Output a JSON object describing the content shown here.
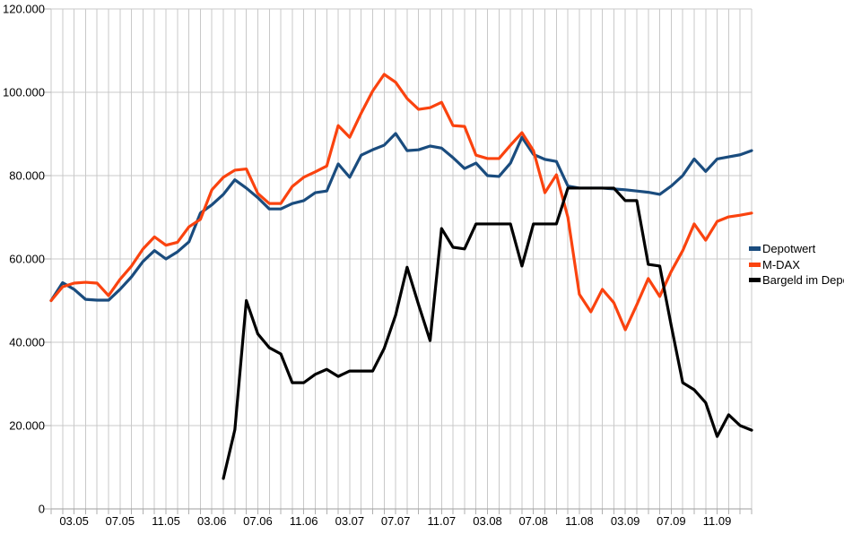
{
  "chart_data": {
    "type": "line",
    "title": "",
    "xlabel": "",
    "ylabel": "",
    "ylim": [
      0,
      120000
    ],
    "grid": "vertical line per month and horizontal line per 20.000, light gray, white background",
    "legend_position": "right, no border",
    "y_tick_labels": [
      "0",
      "20.000",
      "40.000",
      "60.000",
      "80.000",
      "100.000",
      "120.000"
    ],
    "y_tick_values": [
      0,
      20000,
      40000,
      60000,
      80000,
      100000,
      120000
    ],
    "x_tick_labels": [
      "03.05",
      "07.05",
      "11.05",
      "03.06",
      "07.06",
      "11.06",
      "03.07",
      "07.07",
      "11.07",
      "03.08",
      "07.08",
      "11.08",
      "03.09",
      "07.09",
      "11.09"
    ],
    "x_tick_month_indices": [
      2,
      6,
      10,
      14,
      18,
      22,
      26,
      30,
      34,
      38,
      42,
      46,
      50,
      54,
      58
    ],
    "x": [
      "01.05",
      "02.05",
      "03.05",
      "04.05",
      "05.05",
      "06.05",
      "07.05",
      "08.05",
      "09.05",
      "10.05",
      "11.05",
      "12.05",
      "01.06",
      "02.06",
      "03.06",
      "04.06",
      "05.06",
      "06.06",
      "07.06",
      "08.06",
      "09.06",
      "10.06",
      "11.06",
      "12.06",
      "01.07",
      "02.07",
      "03.07",
      "04.07",
      "05.07",
      "06.07",
      "07.07",
      "08.07",
      "09.07",
      "10.07",
      "11.07",
      "12.07",
      "01.08",
      "02.08",
      "03.08",
      "04.08",
      "05.08",
      "06.08",
      "07.08",
      "08.08",
      "09.08",
      "10.08",
      "11.08",
      "12.08",
      "01.09",
      "02.09",
      "03.09",
      "04.09",
      "05.09",
      "06.09",
      "07.09",
      "08.09",
      "09.09",
      "10.09",
      "11.09",
      "12.09",
      "01.10",
      "02.10"
    ],
    "series": [
      {
        "name": "Depotwert",
        "color": "#1A4C7E",
        "values": [
          50000,
          54300,
          52700,
          50300,
          50100,
          50100,
          52700,
          55700,
          59400,
          62000,
          60000,
          61700,
          64100,
          71000,
          73000,
          75500,
          79000,
          77000,
          74700,
          72000,
          72000,
          73300,
          74000,
          75900,
          76300,
          82800,
          79600,
          84900,
          86200,
          87300,
          90100,
          86000,
          86200,
          87100,
          86600,
          84300,
          81700,
          83000,
          80000,
          79800,
          83000,
          89200,
          85100,
          83900,
          83400,
          77500,
          77000,
          77000,
          77000,
          76800,
          76600,
          76300,
          76000,
          75500,
          77500,
          80000,
          84000,
          81000,
          84000,
          84500,
          85000,
          86000
        ]
      },
      {
        "name": "M-DAX",
        "color": "#FA430F",
        "values": [
          50000,
          53300,
          54200,
          54400,
          54200,
          51200,
          55100,
          58300,
          62400,
          65300,
          63300,
          64000,
          67700,
          69500,
          76600,
          79600,
          81300,
          81600,
          75700,
          73300,
          73300,
          77400,
          79600,
          80900,
          82300,
          92000,
          89200,
          95000,
          100300,
          104300,
          102400,
          98500,
          95900,
          96300,
          97600,
          92000,
          91800,
          84900,
          84100,
          84100,
          87300,
          90300,
          86000,
          75900,
          80200,
          70000,
          51500,
          47300,
          52700,
          49500,
          43000,
          49000,
          55300,
          51000,
          57000,
          62000,
          68400,
          64500,
          69000,
          70100,
          70500,
          71000
        ]
      },
      {
        "name": "Bargeld im Depot",
        "color": "#000000",
        "values": [
          null,
          null,
          null,
          null,
          null,
          null,
          null,
          null,
          null,
          null,
          null,
          null,
          null,
          null,
          null,
          7300,
          19000,
          50000,
          42000,
          38700,
          37200,
          30300,
          30300,
          32300,
          33500,
          31800,
          33100,
          33100,
          33100,
          38500,
          46500,
          58000,
          49000,
          40400,
          67300,
          62800,
          62400,
          68400,
          68400,
          68400,
          68400,
          58300,
          68400,
          68400,
          68400,
          77000,
          77000,
          77000,
          77000,
          77000,
          74000,
          74000,
          58700,
          58300,
          44000,
          30300,
          28600,
          25500,
          17400,
          22600,
          20000,
          18900
        ]
      }
    ],
    "colors": {
      "gridline": "#C9C9C9",
      "axis": "#9E9E9E",
      "tick": "#AFAFAF",
      "label_text": "#000000",
      "background": "#FFFFFF"
    }
  },
  "legend": {
    "items": [
      {
        "label": "Depotwert"
      },
      {
        "label": "M-DAX"
      },
      {
        "label": "Bargeld im Depot"
      }
    ]
  }
}
